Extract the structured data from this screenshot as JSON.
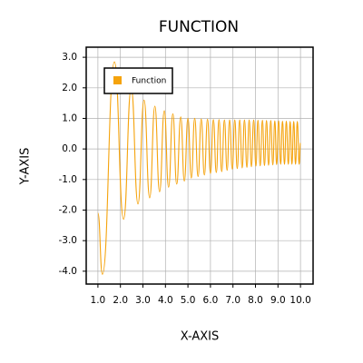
{
  "chart_data": {
    "type": "line",
    "title": "FUNCTION",
    "x_label": "X-AXIS",
    "y_label": "Y-AXIS",
    "xlim": [
      0.48,
      10.56
    ],
    "ylim": [
      -4.42,
      3.33
    ],
    "xticks": [
      {
        "value": 1,
        "label": "1.0"
      },
      {
        "value": 2,
        "label": "2.0"
      },
      {
        "value": 3,
        "label": "3.0"
      },
      {
        "value": 4,
        "label": "4.0"
      },
      {
        "value": 5,
        "label": "5.0"
      },
      {
        "value": 6,
        "label": "6.0"
      },
      {
        "value": 7,
        "label": "7.0"
      },
      {
        "value": 8,
        "label": "8.0"
      },
      {
        "value": 9,
        "label": "9.0"
      },
      {
        "value": 10,
        "label": "10.0"
      }
    ],
    "yticks": [
      {
        "value": 3,
        "label": "3.0"
      },
      {
        "value": 2,
        "label": "2.0"
      },
      {
        "value": 1,
        "label": "1.0"
      },
      {
        "value": 0,
        "label": "0.0"
      },
      {
        "value": -1,
        "label": "-1.0"
      },
      {
        "value": -2,
        "label": "-2.0"
      },
      {
        "value": -3,
        "label": "-3.0"
      },
      {
        "value": -4,
        "label": "-4.0"
      }
    ],
    "grid": true,
    "legend": "upper left",
    "x": [
      1.0,
      1.2,
      1.735,
      2.14,
      2.48,
      2.78,
      3.05,
      3.3,
      3.53,
      3.74,
      3.95,
      4.14,
      4.33,
      4.5,
      4.68,
      4.84,
      5.0,
      5.15,
      5.3,
      5.45,
      5.59,
      5.73,
      5.87,
      6.0,
      6.13,
      6.26,
      6.38,
      6.5,
      6.62,
      6.74,
      6.85,
      6.97,
      7.08,
      7.19,
      7.3,
      7.41,
      7.51,
      7.62,
      7.72,
      7.82,
      7.92,
      8.02,
      8.11,
      8.21,
      8.31,
      8.4,
      8.49,
      8.58,
      8.68,
      8.77,
      8.86,
      8.94,
      9.03,
      9.12,
      9.2,
      9.29,
      9.37,
      9.46,
      9.54,
      9.62,
      9.7,
      9.78,
      9.86,
      9.94,
      10.0
    ],
    "series": [
      {
        "name": "Function",
        "color": "#f5a30c",
        "values": [
          -2.1,
          -4.1,
          2.85,
          -2.3,
          2.0,
          -1.8,
          1.6,
          -1.6,
          1.4,
          -1.4,
          1.25,
          -1.25,
          1.15,
          -1.15,
          1.05,
          -1.05,
          1.0,
          -0.95,
          1.0,
          -0.9,
          0.98,
          -0.85,
          0.97,
          -0.8,
          0.96,
          -0.77,
          0.96,
          -0.74,
          0.95,
          -0.7,
          0.95,
          -0.66,
          0.95,
          -0.64,
          0.95,
          -0.62,
          0.95,
          -0.6,
          0.95,
          -0.58,
          0.95,
          -0.56,
          0.94,
          -0.55,
          0.94,
          -0.54,
          0.93,
          -0.53,
          0.93,
          -0.52,
          0.92,
          -0.51,
          0.92,
          -0.5,
          0.91,
          -0.5,
          0.91,
          -0.5,
          0.9,
          -0.5,
          0.9,
          -0.5,
          0.9,
          -0.5,
          0.2
        ]
      }
    ]
  }
}
